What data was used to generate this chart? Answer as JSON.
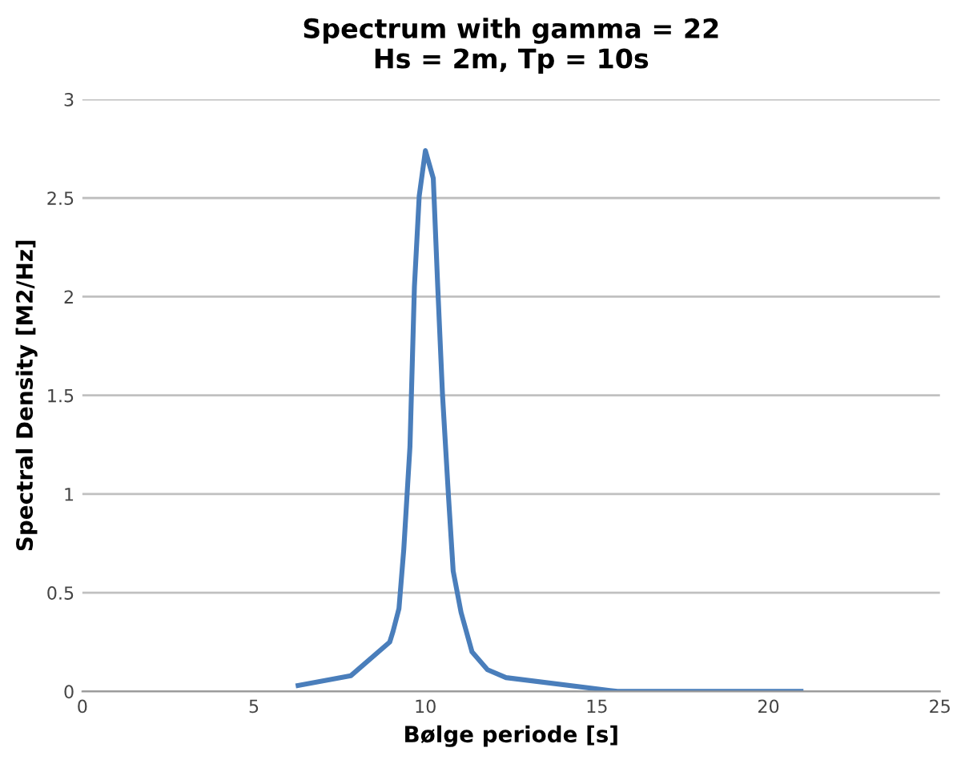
{
  "chart_data": {
    "type": "line",
    "title": "Spectrum with gamma = 22\nHs = 2m, Tp = 10s",
    "xlabel": "Bølge periode [s]",
    "ylabel": "Spectral Density [M2/Hz]",
    "x": [
      6.29,
      7.83,
      8.96,
      9.05,
      9.23,
      9.37,
      9.55,
      9.68,
      9.82,
      10.0,
      10.23,
      10.36,
      10.5,
      10.68,
      10.81,
      11.04,
      11.36,
      11.81,
      12.35,
      15.6,
      20.95
    ],
    "series": [
      {
        "color": "#4a7ebb",
        "values": [
          0.03,
          0.08,
          0.25,
          0.3,
          0.42,
          0.72,
          1.24,
          2.05,
          2.51,
          2.74,
          2.6,
          2.05,
          1.5,
          0.97,
          0.61,
          0.4,
          0.2,
          0.11,
          0.07,
          0.0,
          0.0
        ]
      }
    ],
    "xlim": [
      0,
      25
    ],
    "xticks": [
      0,
      5,
      10,
      15,
      20,
      25
    ],
    "ylim": [
      0,
      3
    ],
    "yticks": [
      0,
      0.5,
      1,
      1.5,
      2,
      2.5,
      3
    ],
    "grid": "y",
    "marker": "none",
    "line_style": "solid"
  }
}
